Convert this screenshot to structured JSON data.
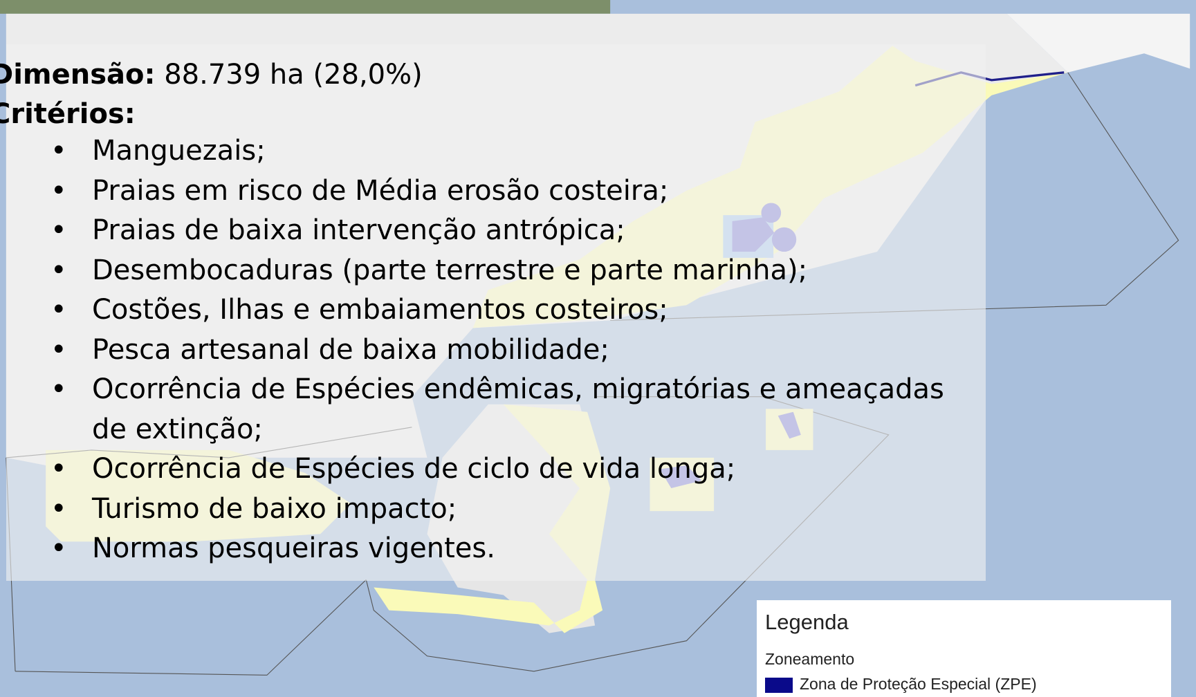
{
  "summary": {
    "dimension_label": "Dimensão:",
    "dimension_value": "88.739 ha (28,0%)",
    "criteria_label": "Critérios:"
  },
  "criteria": [
    "Manguezais;",
    "Praias em risco de Média erosão costeira;",
    "Praias de baixa intervenção antrópica;",
    "Desembocaduras (parte terrestre e parte marinha);",
    "Costões, Ilhas e embaiamentos costeiros;",
    "Pesca artesanal de baixa mobilidade;",
    "Ocorrência de Espécies endêmicas, migratórias e ameaçadas de extinção;",
    "Ocorrência de Espécies de ciclo de vida longa;",
    "Turismo de baixo impacto;",
    "Normas pesqueiras vigentes."
  ],
  "legend": {
    "title": "Legenda",
    "group": "Zoneamento",
    "items": [
      "Zona de Proteção Especial (ZPE)"
    ]
  }
}
